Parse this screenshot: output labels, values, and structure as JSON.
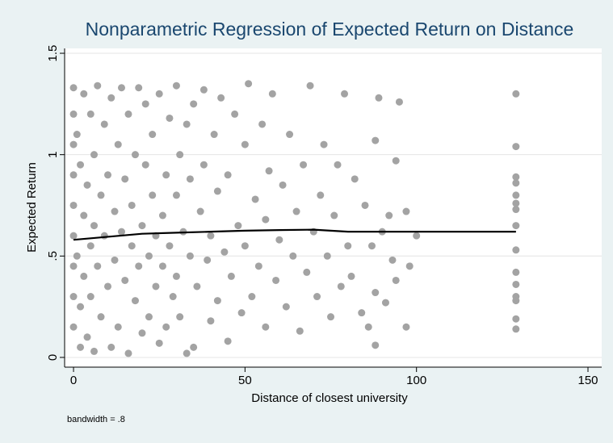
{
  "chart_data": {
    "type": "scatter",
    "title": "Nonparametric Regression of Expected Return on Distance",
    "xlabel": "Distance of closest university",
    "ylabel": "Expected Return",
    "note": "bandwidth = .8",
    "xlim": [
      -2.6,
      154
    ],
    "ylim": [
      -0.048,
      1.524
    ],
    "xticks": [
      0,
      50,
      100,
      150
    ],
    "yticks": [
      0,
      {
        "value": 0.5,
        "label": ".5"
      },
      1,
      1.5
    ],
    "grid": true,
    "series": [
      {
        "type": "scatter",
        "color": "#a3a3a3",
        "x": [
          0,
          0,
          0,
          0,
          0,
          0,
          0,
          0,
          0,
          1,
          1,
          2,
          2,
          2,
          3,
          3,
          3,
          4,
          4,
          5,
          5,
          5,
          6,
          6,
          6,
          7,
          7,
          8,
          8,
          9,
          9,
          10,
          10,
          11,
          11,
          12,
          12,
          13,
          13,
          14,
          14,
          15,
          15,
          16,
          16,
          17,
          17,
          18,
          18,
          19,
          19,
          20,
          20,
          21,
          21,
          22,
          22,
          23,
          23,
          24,
          24,
          25,
          25,
          26,
          26,
          27,
          27,
          28,
          28,
          29,
          30,
          30,
          30,
          31,
          31,
          32,
          33,
          33,
          34,
          34,
          35,
          35,
          36,
          37,
          38,
          38,
          39,
          40,
          40,
          41,
          42,
          42,
          43,
          44,
          45,
          45,
          46,
          47,
          48,
          49,
          50,
          50,
          51,
          52,
          53,
          54,
          55,
          56,
          56,
          57,
          58,
          59,
          60,
          61,
          62,
          63,
          64,
          65,
          66,
          67,
          68,
          69,
          70,
          71,
          72,
          73,
          74,
          75,
          76,
          77,
          78,
          79,
          80,
          81,
          82,
          84,
          85,
          86,
          87,
          88,
          88,
          88,
          89,
          90,
          91,
          92,
          93,
          94,
          94,
          95,
          97,
          97,
          98,
          100,
          129,
          129,
          129,
          129,
          129,
          129,
          129,
          129,
          129,
          129,
          129,
          129,
          129,
          129,
          129
        ],
        "values": [
          1.33,
          1.2,
          1.05,
          0.9,
          0.75,
          0.6,
          0.45,
          0.3,
          0.15,
          1.1,
          0.5,
          0.95,
          0.25,
          0.05,
          1.3,
          0.7,
          0.4,
          0.85,
          0.1,
          1.2,
          0.55,
          0.3,
          1.0,
          0.65,
          0.03,
          1.34,
          0.45,
          0.8,
          0.2,
          1.15,
          0.6,
          0.35,
          0.9,
          1.28,
          0.05,
          0.72,
          0.48,
          1.05,
          0.15,
          1.33,
          0.62,
          0.38,
          0.88,
          1.2,
          0.02,
          0.55,
          0.75,
          1.0,
          0.28,
          1.33,
          0.45,
          0.65,
          0.12,
          0.95,
          1.25,
          0.5,
          0.2,
          0.8,
          1.1,
          0.35,
          0.6,
          1.3,
          0.07,
          0.7,
          0.45,
          0.9,
          0.15,
          1.18,
          0.55,
          0.3,
          1.34,
          0.8,
          0.4,
          1.0,
          0.2,
          0.62,
          0.02,
          1.15,
          0.5,
          0.88,
          0.05,
          1.25,
          0.35,
          0.72,
          1.32,
          0.95,
          0.48,
          0.18,
          0.6,
          1.1,
          0.28,
          0.82,
          1.28,
          0.52,
          0.08,
          0.9,
          0.4,
          1.2,
          0.65,
          0.22,
          1.05,
          0.55,
          1.35,
          0.3,
          0.78,
          0.45,
          1.15,
          0.15,
          0.68,
          0.92,
          1.3,
          0.38,
          0.58,
          0.85,
          0.25,
          1.1,
          0.5,
          0.72,
          0.13,
          0.95,
          0.42,
          1.34,
          0.62,
          0.3,
          0.8,
          1.05,
          0.5,
          0.2,
          0.7,
          0.95,
          0.35,
          1.3,
          0.55,
          0.4,
          0.88,
          0.22,
          0.75,
          0.15,
          0.55,
          1.07,
          0.32,
          0.06,
          1.28,
          0.62,
          0.27,
          0.7,
          0.48,
          0.97,
          0.38,
          1.26,
          0.72,
          0.15,
          0.45,
          0.6,
          1.3,
          1.04,
          0.89,
          0.86,
          0.8,
          0.76,
          0.73,
          0.65,
          0.53,
          0.42,
          0.36,
          0.3,
          0.28,
          0.19,
          0.14
        ]
      },
      {
        "type": "line",
        "color": "#000000",
        "x": [
          0,
          10,
          20,
          30,
          40,
          50,
          60,
          70,
          80,
          100,
          129
        ],
        "values": [
          0.58,
          0.595,
          0.61,
          0.615,
          0.62,
          0.625,
          0.628,
          0.63,
          0.62,
          0.62,
          0.62
        ]
      }
    ]
  }
}
